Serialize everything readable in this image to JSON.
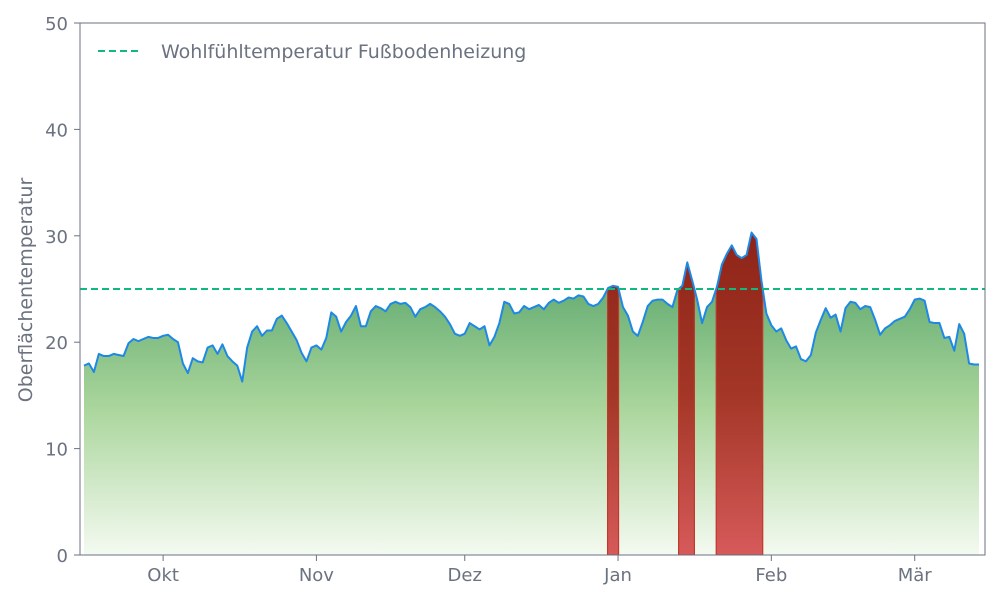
{
  "chart_data": {
    "type": "area",
    "title": "",
    "xlabel": "",
    "ylabel": "Oberflächentemperatur",
    "ylim": [
      0,
      50
    ],
    "y_ticks": [
      0,
      10,
      20,
      30,
      40,
      50
    ],
    "x_ticks": [
      {
        "date": "2023-10-01",
        "label": "Okt"
      },
      {
        "date": "2023-11-01",
        "label": "Nov"
      },
      {
        "date": "2023-12-01",
        "label": "Dez"
      },
      {
        "date": "2024-01-01",
        "label": "Jan"
      },
      {
        "date": "2024-02-01",
        "label": "Feb"
      },
      {
        "date": "2024-03-01",
        "label": "Mär"
      }
    ],
    "x_start": "2023-09-15",
    "grid": false,
    "legend": {
      "position": "top-left",
      "entries": [
        "Wohlfühltemperatur Fußbodenheizung"
      ]
    },
    "threshold": {
      "name": "Wohlfühltemperatur Fußbodenheizung",
      "value": 25,
      "color": "#10b981"
    },
    "line_color": "#1e88e5",
    "fill_low_color": "#5aa66c",
    "fill_high_color": "#c0392b",
    "series": [
      {
        "values": [
          17.8,
          18.0,
          17.2,
          18.9,
          18.7,
          18.7,
          18.9,
          18.8,
          18.7,
          19.9,
          20.3,
          20.1,
          20.3,
          20.5,
          20.4,
          20.4,
          20.6,
          20.7,
          20.3,
          20.0,
          18.0,
          17.1,
          18.5,
          18.2,
          18.1,
          19.5,
          19.7,
          18.9,
          19.8,
          18.7,
          18.2,
          17.8,
          16.3,
          19.5,
          21.0,
          21.5,
          20.6,
          21.1,
          21.1,
          22.2,
          22.5,
          21.8,
          21.0,
          20.2,
          19.0,
          18.2,
          19.5,
          19.7,
          19.3,
          20.4,
          22.8,
          22.4,
          21.0,
          21.9,
          22.5,
          23.4,
          21.5,
          21.5,
          22.9,
          23.4,
          23.2,
          22.9,
          23.6,
          23.8,
          23.6,
          23.7,
          23.3,
          22.4,
          23.1,
          23.3,
          23.6,
          23.3,
          22.9,
          22.4,
          21.7,
          20.8,
          20.6,
          20.8,
          21.8,
          21.5,
          21.2,
          21.5,
          19.7,
          20.5,
          21.8,
          23.8,
          23.6,
          22.7,
          22.8,
          23.4,
          23.1,
          23.3,
          23.5,
          23.1,
          23.7,
          24.0,
          23.7,
          23.9,
          24.2,
          24.1,
          24.4,
          24.3,
          23.6,
          23.4,
          23.6,
          24.2,
          25.1,
          25.3,
          25.2,
          23.3,
          22.5,
          21.0,
          20.6,
          21.9,
          23.4,
          23.9,
          24.0,
          24.0,
          23.6,
          23.3,
          24.9,
          25.3,
          27.5,
          25.8,
          24.0,
          21.8,
          23.3,
          23.8,
          25.2,
          27.3,
          28.3,
          29.1,
          28.2,
          27.9,
          28.2,
          30.3,
          29.7,
          25.8,
          22.7,
          21.6,
          21.0,
          21.3,
          20.2,
          19.4,
          19.6,
          18.4,
          18.2,
          18.8,
          20.9,
          22.1,
          23.2,
          22.3,
          22.6,
          21.0,
          23.2,
          23.8,
          23.7,
          23.1,
          23.4,
          23.3,
          22.1,
          20.7,
          21.3,
          21.6,
          22.0,
          22.2,
          22.4,
          23.1,
          24.0,
          24.1,
          23.9,
          21.9,
          21.8,
          21.8,
          20.4,
          20.5,
          19.2,
          21.7,
          20.8,
          18.0,
          17.9,
          17.9
        ]
      }
    ]
  }
}
